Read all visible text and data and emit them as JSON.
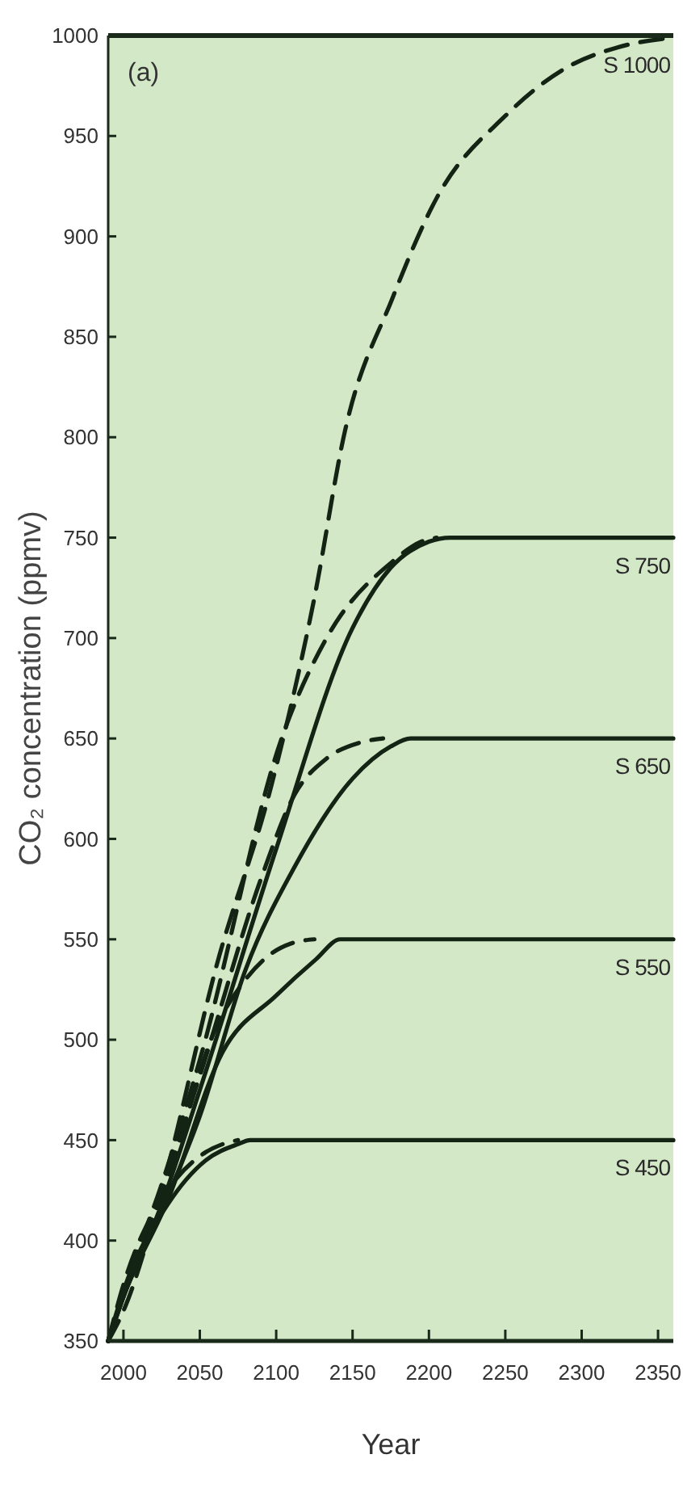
{
  "chart_data": {
    "type": "line",
    "xlabel": "Year",
    "ylabel": "CO₂ concentration (ppmv)",
    "annotations": [
      "(a)"
    ],
    "xlim": [
      1990,
      2360
    ],
    "xticks": [
      2000,
      2050,
      2100,
      2150,
      2200,
      2250,
      2300,
      2350
    ],
    "ylim": [
      350,
      1000
    ],
    "yticks": [
      350,
      400,
      450,
      500,
      550,
      600,
      650,
      700,
      750,
      800,
      850,
      900,
      950,
      1000
    ],
    "grid": false,
    "series": [
      {
        "name": "S 450",
        "color": "#142414",
        "line_style": "solid",
        "x": [
          1990,
          2000,
          2029,
          2054,
          2075,
          2083,
          2360
        ],
        "values": [
          350,
          375,
          418,
          440,
          448,
          450,
          450
        ]
      },
      {
        "color": "#142414",
        "line_style": "dashed",
        "x": [
          1990,
          2000,
          2029,
          2050,
          2065,
          2075
        ],
        "values": [
          350,
          378,
          425,
          442,
          448,
          450
        ]
      },
      {
        "name": "S 550",
        "color": "#142414",
        "line_style": "solid",
        "x": [
          1990,
          2000,
          2029,
          2065,
          2100,
          2126,
          2142,
          2360
        ],
        "values": [
          350,
          372,
          420,
          494,
          522,
          540,
          550,
          550
        ]
      },
      {
        "color": "#142414",
        "line_style": "dashed",
        "x": [
          1990,
          2000,
          2029,
          2060,
          2080,
          2097,
          2110,
          2125
        ],
        "values": [
          350,
          375,
          430,
          505,
          530,
          543,
          548,
          550
        ]
      },
      {
        "name": "S 650",
        "color": "#142414",
        "line_style": "solid",
        "x": [
          1990,
          2000,
          2025,
          2050,
          2080,
          2112,
          2150,
          2175,
          2188,
          2360
        ],
        "values": [
          350,
          372,
          415,
          462,
          535,
          586,
          630,
          646,
          650,
          650
        ]
      },
      {
        "color": "#142414",
        "line_style": "dashed",
        "x": [
          1990,
          2000,
          2025,
          2050,
          2090,
          2112,
          2133,
          2155,
          2170
        ],
        "values": [
          350,
          375,
          425,
          482,
          580,
          622,
          640,
          648,
          650
        ]
      },
      {
        "name": "S 750",
        "color": "#142414",
        "line_style": "solid",
        "x": [
          1990,
          2000,
          2025,
          2050,
          2100,
          2150,
          2175,
          2200,
          2214,
          2360
        ],
        "values": [
          350,
          372,
          418,
          475,
          595,
          705,
          735,
          748,
          750,
          750
        ]
      },
      {
        "color": "#142414",
        "line_style": "dashed",
        "x": [
          1990,
          2000,
          2025,
          2050,
          2104,
          2133,
          2176,
          2195,
          2205
        ],
        "values": [
          350,
          375,
          428,
          490,
          651,
          700,
          738,
          748,
          750
        ]
      },
      {
        "name": "S 1000",
        "color": "#142414",
        "line_style": "dashed",
        "x": [
          1990,
          2000,
          2025,
          2061,
          2097,
          2125,
          2145,
          2176,
          2205,
          2250,
          2290,
          2323,
          2360
        ],
        "values": [
          350,
          365,
          425,
          537,
          627,
          720,
          803,
          869,
          919,
          960,
          984,
          994,
          999
        ]
      }
    ]
  }
}
